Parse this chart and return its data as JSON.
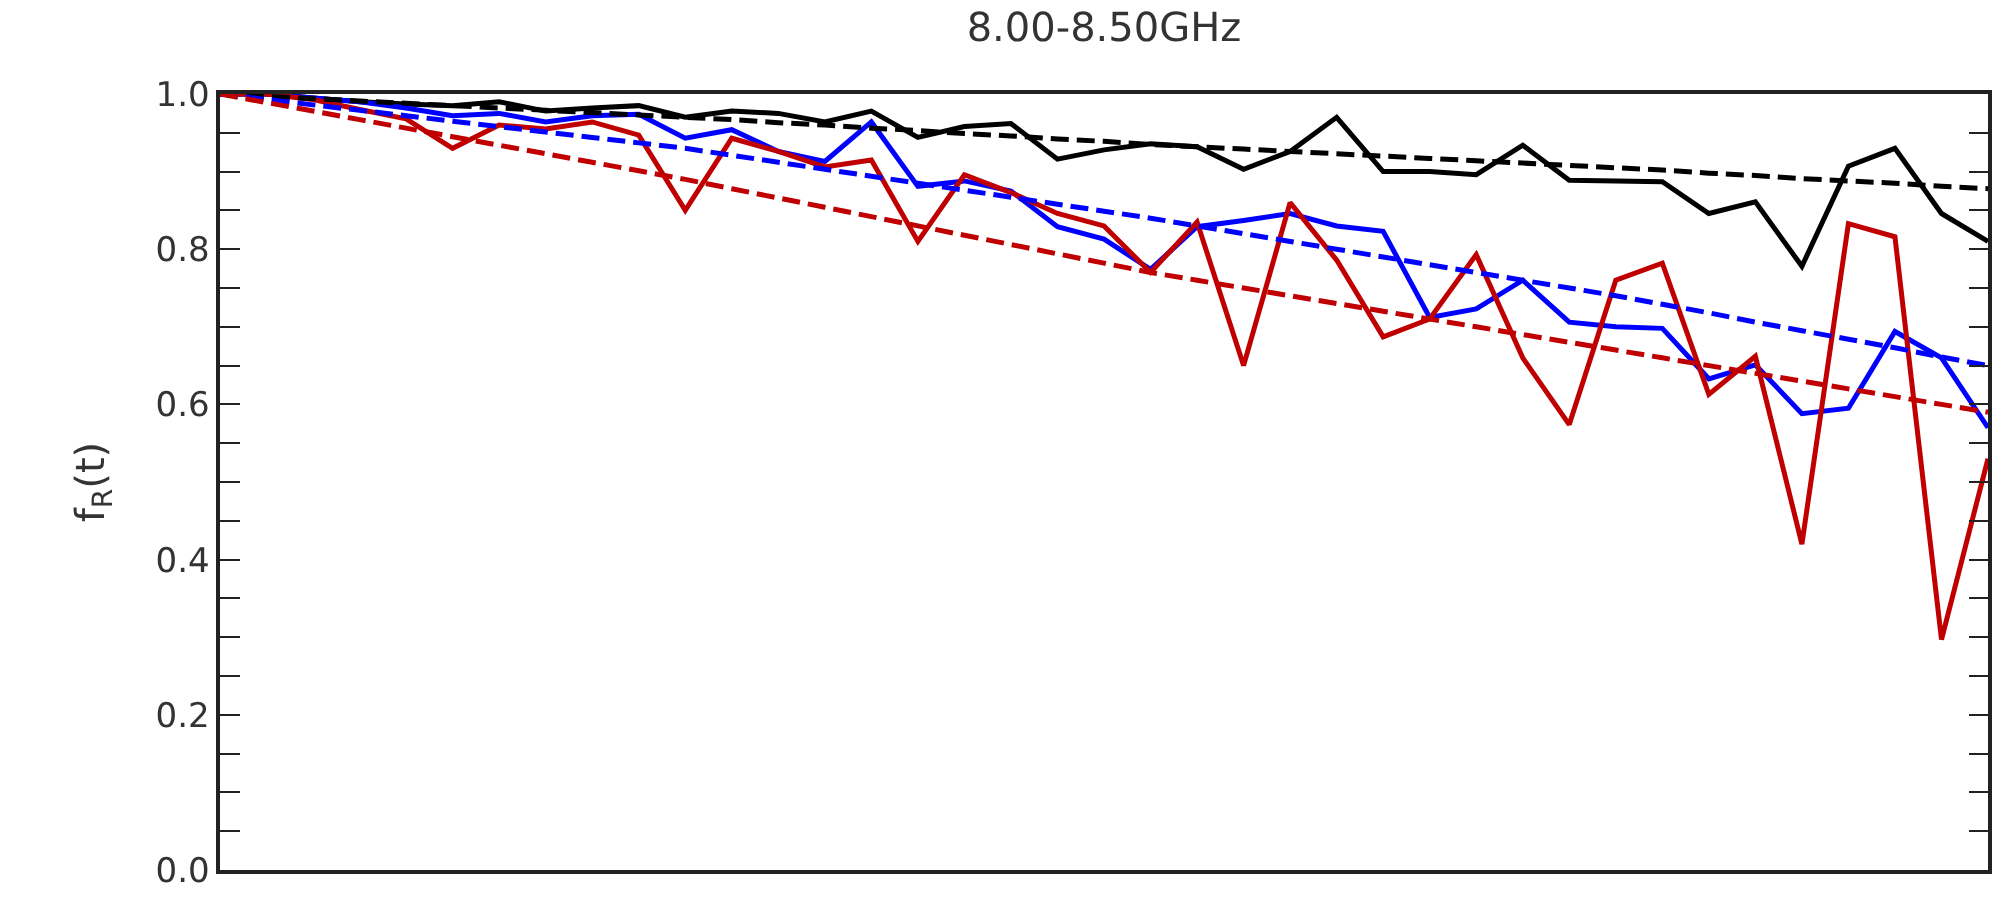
{
  "chart_data": {
    "type": "line",
    "title": "8.00-8.50GHz",
    "ylabel": "f$_{R}$(t)",
    "categories": [
      null,
      null,
      null,
      null,
      null,
      null,
      null,
      null,
      null,
      null,
      null,
      null,
      null,
      null,
      null,
      null,
      null,
      null,
      null,
      null,
      null,
      null,
      null,
      null,
      null,
      null,
      null,
      null,
      null,
      null,
      null,
      null,
      null,
      null,
      null,
      null,
      null,
      null,
      null
    ],
    "series": [
      {
        "color": "#000000",
        "line_style": "solid",
        "values": [
          1.0,
          1.0,
          0.995,
          0.99,
          0.987,
          0.985,
          0.99,
          0.978,
          0.982,
          0.985,
          0.97,
          0.978,
          0.975,
          0.964,
          0.978,
          0.944,
          0.958,
          0.962,
          0.916,
          0.928,
          0.936,
          0.932,
          0.903,
          0.926,
          0.97,
          0.9,
          0.9,
          0.896,
          0.934,
          0.889,
          0.888,
          0.887,
          0.846,
          0.861,
          0.778,
          0.907,
          0.93,
          0.846,
          0.81
        ]
      },
      {
        "color": "#0000ff",
        "line_style": "solid",
        "values": [
          1.0,
          1.0,
          0.995,
          0.99,
          0.982,
          0.972,
          0.975,
          0.964,
          0.972,
          0.974,
          0.943,
          0.954,
          0.926,
          0.913,
          0.964,
          0.881,
          0.888,
          0.875,
          0.829,
          0.813,
          0.774,
          0.829,
          0.837,
          0.846,
          0.83,
          0.823,
          0.712,
          0.723,
          0.76,
          0.706,
          0.7,
          0.698,
          0.633,
          0.651,
          0.588,
          0.595,
          0.694,
          0.66,
          0.57
        ]
      },
      {
        "color": "#c00000",
        "line_style": "solid",
        "values": [
          1.0,
          1.0,
          0.993,
          0.98,
          0.968,
          0.93,
          0.96,
          0.955,
          0.964,
          0.947,
          0.85,
          0.943,
          0.926,
          0.906,
          0.915,
          0.81,
          0.896,
          0.873,
          0.846,
          0.83,
          0.77,
          0.835,
          0.65,
          0.86,
          0.786,
          0.687,
          0.71,
          0.793,
          0.66,
          0.574,
          0.76,
          0.782,
          0.613,
          0.662,
          0.42,
          0.833,
          0.816,
          0.297,
          0.53
        ]
      },
      {
        "color": "#000000",
        "line_style": "dashed",
        "values": [
          1.0,
          0.997,
          0.994,
          0.991,
          0.988,
          0.985,
          0.982,
          0.979,
          0.976,
          0.973,
          0.97,
          0.967,
          0.963,
          0.96,
          0.956,
          0.953,
          0.949,
          0.946,
          0.942,
          0.939,
          0.935,
          0.932,
          0.929,
          0.926,
          0.923,
          0.92,
          0.917,
          0.914,
          0.911,
          0.908,
          0.905,
          0.902,
          0.898,
          0.895,
          0.891,
          0.888,
          0.885,
          0.881,
          0.878
        ]
      },
      {
        "color": "#0000ff",
        "line_style": "dashed",
        "values": [
          1.0,
          0.993,
          0.986,
          0.979,
          0.972,
          0.965,
          0.958,
          0.951,
          0.944,
          0.937,
          0.93,
          0.921,
          0.912,
          0.903,
          0.894,
          0.885,
          0.876,
          0.867,
          0.858,
          0.849,
          0.84,
          0.83,
          0.82,
          0.81,
          0.8,
          0.79,
          0.78,
          0.77,
          0.76,
          0.75,
          0.74,
          0.729,
          0.718,
          0.706,
          0.695,
          0.684,
          0.673,
          0.661,
          0.65
        ]
      },
      {
        "color": "#c00000",
        "line_style": "dashed",
        "values": [
          1.0,
          0.989,
          0.978,
          0.967,
          0.956,
          0.945,
          0.934,
          0.923,
          0.912,
          0.901,
          0.89,
          0.878,
          0.866,
          0.854,
          0.842,
          0.83,
          0.818,
          0.806,
          0.794,
          0.782,
          0.77,
          0.76,
          0.75,
          0.74,
          0.73,
          0.72,
          0.71,
          0.7,
          0.69,
          0.68,
          0.67,
          0.66,
          0.65,
          0.64,
          0.63,
          0.62,
          0.61,
          0.6,
          0.59
        ]
      }
    ],
    "ylim": [
      0,
      1.0
    ],
    "yticks": [
      {
        "value": 0,
        "label": "0.0"
      },
      {
        "value": 0.05,
        "label": null
      },
      {
        "value": 0.1,
        "label": null
      },
      {
        "value": 0.15,
        "label": null
      },
      {
        "value": 0.2,
        "label": "0.2"
      },
      {
        "value": 0.25,
        "label": null
      },
      {
        "value": 0.3,
        "label": null
      },
      {
        "value": 0.35,
        "label": null
      },
      {
        "value": 0.4,
        "label": "0.4"
      },
      {
        "value": 0.45,
        "label": null
      },
      {
        "value": 0.5,
        "label": null
      },
      {
        "value": 0.55,
        "label": null
      },
      {
        "value": 0.6,
        "label": "0.6"
      },
      {
        "value": 0.65,
        "label": null
      },
      {
        "value": 0.7,
        "label": null
      },
      {
        "value": 0.75,
        "label": null
      },
      {
        "value": 0.8,
        "label": "0.8"
      },
      {
        "value": 0.85,
        "label": null
      },
      {
        "value": 0.9,
        "label": null
      },
      {
        "value": 0.95,
        "label": null
      },
      {
        "value": 1.0,
        "label": "1.0"
      }
    ],
    "tick_labels": "y",
    "marker": "none"
  }
}
